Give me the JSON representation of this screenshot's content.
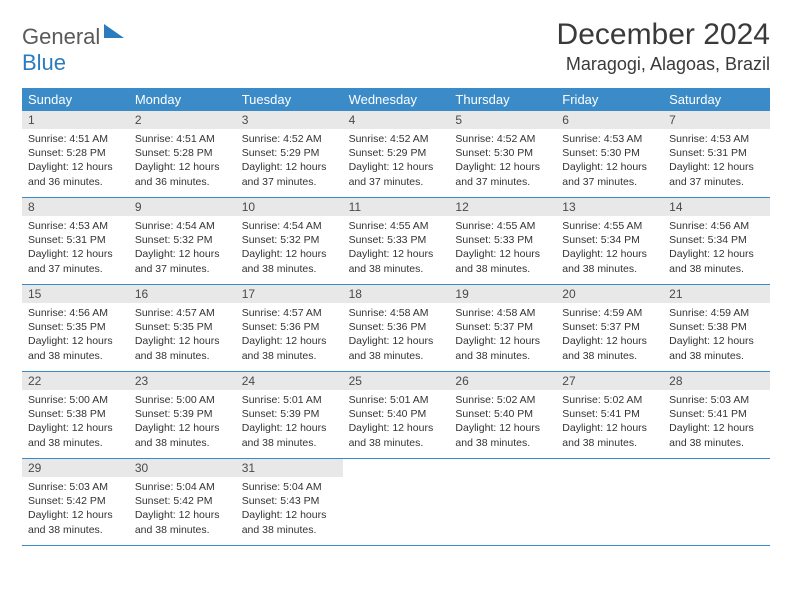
{
  "logo": {
    "part1": "General",
    "part2": "Blue"
  },
  "title": "December 2024",
  "location": "Maragogi, Alagoas, Brazil",
  "colors": {
    "header_bg": "#3b8bc8",
    "daynum_bg": "#e8e8e8",
    "border": "#3b8bc8",
    "logo_blue": "#2b7bbf",
    "logo_gray": "#5a5a5a"
  },
  "weekdays": [
    "Sunday",
    "Monday",
    "Tuesday",
    "Wednesday",
    "Thursday",
    "Friday",
    "Saturday"
  ],
  "days": [
    {
      "n": "1",
      "sr": "4:51 AM",
      "ss": "5:28 PM",
      "dl": "12 hours and 36 minutes."
    },
    {
      "n": "2",
      "sr": "4:51 AM",
      "ss": "5:28 PM",
      "dl": "12 hours and 36 minutes."
    },
    {
      "n": "3",
      "sr": "4:52 AM",
      "ss": "5:29 PM",
      "dl": "12 hours and 37 minutes."
    },
    {
      "n": "4",
      "sr": "4:52 AM",
      "ss": "5:29 PM",
      "dl": "12 hours and 37 minutes."
    },
    {
      "n": "5",
      "sr": "4:52 AM",
      "ss": "5:30 PM",
      "dl": "12 hours and 37 minutes."
    },
    {
      "n": "6",
      "sr": "4:53 AM",
      "ss": "5:30 PM",
      "dl": "12 hours and 37 minutes."
    },
    {
      "n": "7",
      "sr": "4:53 AM",
      "ss": "5:31 PM",
      "dl": "12 hours and 37 minutes."
    },
    {
      "n": "8",
      "sr": "4:53 AM",
      "ss": "5:31 PM",
      "dl": "12 hours and 37 minutes."
    },
    {
      "n": "9",
      "sr": "4:54 AM",
      "ss": "5:32 PM",
      "dl": "12 hours and 37 minutes."
    },
    {
      "n": "10",
      "sr": "4:54 AM",
      "ss": "5:32 PM",
      "dl": "12 hours and 38 minutes."
    },
    {
      "n": "11",
      "sr": "4:55 AM",
      "ss": "5:33 PM",
      "dl": "12 hours and 38 minutes."
    },
    {
      "n": "12",
      "sr": "4:55 AM",
      "ss": "5:33 PM",
      "dl": "12 hours and 38 minutes."
    },
    {
      "n": "13",
      "sr": "4:55 AM",
      "ss": "5:34 PM",
      "dl": "12 hours and 38 minutes."
    },
    {
      "n": "14",
      "sr": "4:56 AM",
      "ss": "5:34 PM",
      "dl": "12 hours and 38 minutes."
    },
    {
      "n": "15",
      "sr": "4:56 AM",
      "ss": "5:35 PM",
      "dl": "12 hours and 38 minutes."
    },
    {
      "n": "16",
      "sr": "4:57 AM",
      "ss": "5:35 PM",
      "dl": "12 hours and 38 minutes."
    },
    {
      "n": "17",
      "sr": "4:57 AM",
      "ss": "5:36 PM",
      "dl": "12 hours and 38 minutes."
    },
    {
      "n": "18",
      "sr": "4:58 AM",
      "ss": "5:36 PM",
      "dl": "12 hours and 38 minutes."
    },
    {
      "n": "19",
      "sr": "4:58 AM",
      "ss": "5:37 PM",
      "dl": "12 hours and 38 minutes."
    },
    {
      "n": "20",
      "sr": "4:59 AM",
      "ss": "5:37 PM",
      "dl": "12 hours and 38 minutes."
    },
    {
      "n": "21",
      "sr": "4:59 AM",
      "ss": "5:38 PM",
      "dl": "12 hours and 38 minutes."
    },
    {
      "n": "22",
      "sr": "5:00 AM",
      "ss": "5:38 PM",
      "dl": "12 hours and 38 minutes."
    },
    {
      "n": "23",
      "sr": "5:00 AM",
      "ss": "5:39 PM",
      "dl": "12 hours and 38 minutes."
    },
    {
      "n": "24",
      "sr": "5:01 AM",
      "ss": "5:39 PM",
      "dl": "12 hours and 38 minutes."
    },
    {
      "n": "25",
      "sr": "5:01 AM",
      "ss": "5:40 PM",
      "dl": "12 hours and 38 minutes."
    },
    {
      "n": "26",
      "sr": "5:02 AM",
      "ss": "5:40 PM",
      "dl": "12 hours and 38 minutes."
    },
    {
      "n": "27",
      "sr": "5:02 AM",
      "ss": "5:41 PM",
      "dl": "12 hours and 38 minutes."
    },
    {
      "n": "28",
      "sr": "5:03 AM",
      "ss": "5:41 PM",
      "dl": "12 hours and 38 minutes."
    },
    {
      "n": "29",
      "sr": "5:03 AM",
      "ss": "5:42 PM",
      "dl": "12 hours and 38 minutes."
    },
    {
      "n": "30",
      "sr": "5:04 AM",
      "ss": "5:42 PM",
      "dl": "12 hours and 38 minutes."
    },
    {
      "n": "31",
      "sr": "5:04 AM",
      "ss": "5:43 PM",
      "dl": "12 hours and 38 minutes."
    }
  ],
  "labels": {
    "sunrise": "Sunrise:",
    "sunset": "Sunset:",
    "daylight": "Daylight:"
  },
  "layout": {
    "first_weekday_index": 0,
    "columns": 7
  }
}
